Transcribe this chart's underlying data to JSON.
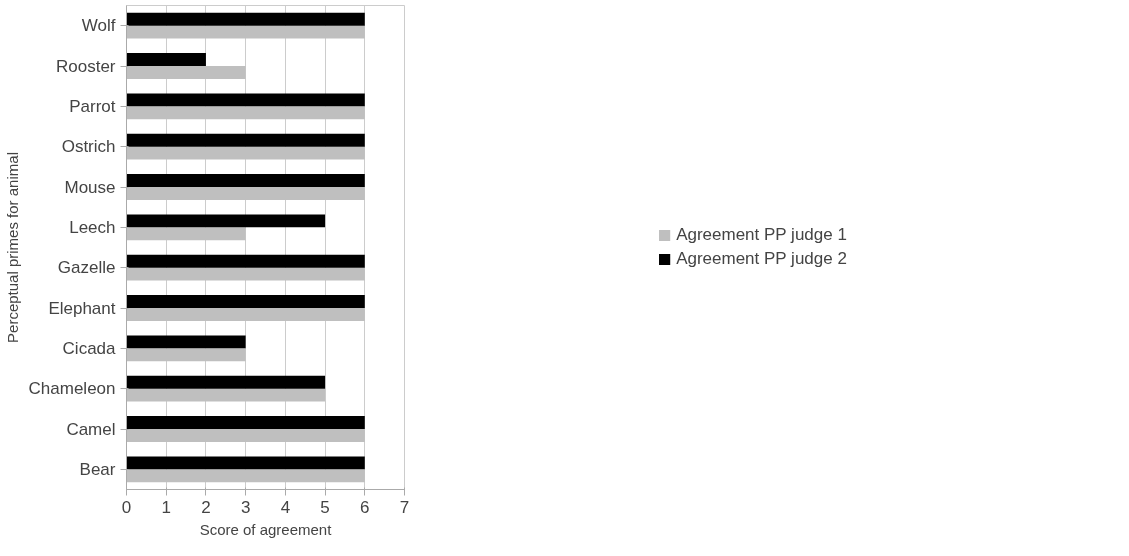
{
  "chart_data": {
    "type": "bar",
    "orientation": "horizontal",
    "xlabel": "Score of agreement",
    "ylabel": "Perceptual primes for animal",
    "categories": [
      "Wolf",
      "Rooster",
      "Parrot",
      "Ostrich",
      "Mouse",
      "Leech",
      "Gazelle",
      "Elephant",
      "Cicada",
      "Chameleon",
      "Camel",
      "Bear"
    ],
    "series": [
      {
        "name": "Agreement PP judge 1",
        "color": "#bfbfbf",
        "values": [
          6,
          3,
          6,
          6,
          6,
          3,
          6,
          6,
          3,
          5,
          6,
          6
        ]
      },
      {
        "name": "Agreement PP judge 2",
        "color": "#000000",
        "values": [
          6,
          2,
          6,
          6,
          6,
          5,
          6,
          6,
          3,
          5,
          6,
          6
        ]
      }
    ],
    "xlim": [
      0,
      7
    ],
    "xticks": [
      0,
      1,
      2,
      3,
      4,
      5,
      6,
      7
    ],
    "grid": "x",
    "legend": "right"
  }
}
